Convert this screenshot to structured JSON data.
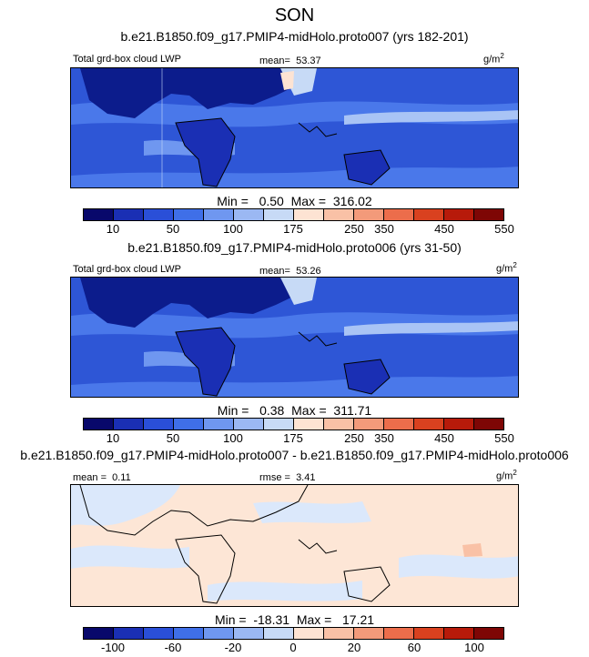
{
  "season": "SON",
  "panels": [
    {
      "title": "b.e21.B1850.f09_g17.PMIP4-midHolo.proto007 (yrs 182-201)",
      "left_label": "Total grd-box cloud LWP",
      "stat_label": "mean=",
      "stat_value": "53.37",
      "units": "g/m",
      "units_exp": "2",
      "min_label": "Min =",
      "min_value": "0.50",
      "max_label": "Max =",
      "max_value": "316.02",
      "colorbar_ticks": [
        "10",
        "50",
        "100",
        "175",
        "250",
        "350",
        "450",
        "550"
      ]
    },
    {
      "title": "b.e21.B1850.f09_g17.PMIP4-midHolo.proto006 (yrs 31-50)",
      "left_label": "Total grd-box cloud LWP",
      "stat_label": "mean=",
      "stat_value": "53.26",
      "units": "g/m",
      "units_exp": "2",
      "min_label": "Min =",
      "min_value": "0.38",
      "max_label": "Max =",
      "max_value": "311.71",
      "colorbar_ticks": [
        "10",
        "50",
        "100",
        "175",
        "250",
        "350",
        "450",
        "550"
      ]
    },
    {
      "title": "b.e21.B1850.f09_g17.PMIP4-midHolo.proto007 - b.e21.B1850.f09_g17.PMIP4-midHolo.proto006",
      "left_label": "mean =",
      "left_value": "0.11",
      "stat_label": "rmse =",
      "stat_value": "3.41",
      "units": "g/m",
      "units_exp": "2",
      "min_label": "Min =",
      "min_value": "-18.31",
      "max_label": "Max =",
      "max_value": "17.21",
      "colorbar_ticks": [
        "-100",
        "-60",
        "-20",
        "0",
        "20",
        "60",
        "100"
      ]
    }
  ],
  "colors": {
    "scale": [
      "#08086b",
      "#1a2fb4",
      "#2a4fd8",
      "#3f6fe8",
      "#6f97f0",
      "#9bb8f3",
      "#c7daf6",
      "#fde3d3",
      "#f9c1a6",
      "#f39a7a",
      "#ec6d4b",
      "#d9411f",
      "#b71a0a",
      "#7e0605"
    ],
    "ocean_low": "#2e56d6",
    "ocean_mid": "#4a78ea",
    "ocean_high": "#a9c4f5",
    "land_low": "#0c1c8c",
    "diff_neutral_blue": "#dbe8fb",
    "diff_neutral_red": "#fde6d6",
    "coast": "#000000"
  }
}
